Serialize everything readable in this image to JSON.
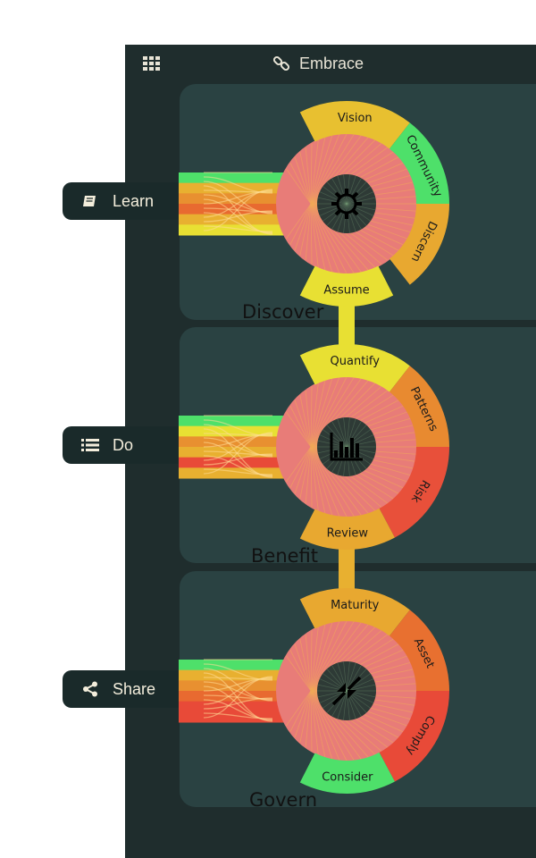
{
  "app": {
    "title": "Embrace",
    "menu_icon": "grid-icon",
    "title_icon": "link-icon"
  },
  "colors": {
    "green": "#4ee06a",
    "yellow": "#e8e033",
    "gold": "#e8b030",
    "orange": "#e89030",
    "dark_orange": "#e86a30",
    "red": "#e84a38",
    "salmon": "#e87c78"
  },
  "actions": [
    {
      "label": "Learn",
      "icon": "book-icon"
    },
    {
      "label": "Do",
      "icon": "list-icon"
    },
    {
      "label": "Share",
      "icon": "share-icon"
    }
  ],
  "stages": [
    {
      "name": "Discover",
      "center_icon": "gear-icon",
      "segments": [
        {
          "label": "Vision",
          "color": "#e8c030"
        },
        {
          "label": "Community",
          "color": "#4ee06a"
        },
        {
          "label": "Discern",
          "color": "#e8a830"
        },
        {
          "label": "Assume",
          "color": "#e8e033"
        }
      ]
    },
    {
      "name": "Benefit",
      "center_icon": "bar-chart-icon",
      "segments": [
        {
          "label": "Quantify",
          "color": "#e8e033"
        },
        {
          "label": "Patterns",
          "color": "#e88a30"
        },
        {
          "label": "Risk",
          "color": "#e8503a"
        },
        {
          "label": "Review",
          "color": "#e8a830"
        }
      ]
    },
    {
      "name": "Govern",
      "center_icon": "compress-icon",
      "segments": [
        {
          "label": "Maturity",
          "color": "#e8a830"
        },
        {
          "label": "Asset",
          "color": "#e87030"
        },
        {
          "label": "Comply",
          "color": "#e84a38"
        },
        {
          "label": "Consider",
          "color": "#4ee06a"
        }
      ]
    }
  ]
}
